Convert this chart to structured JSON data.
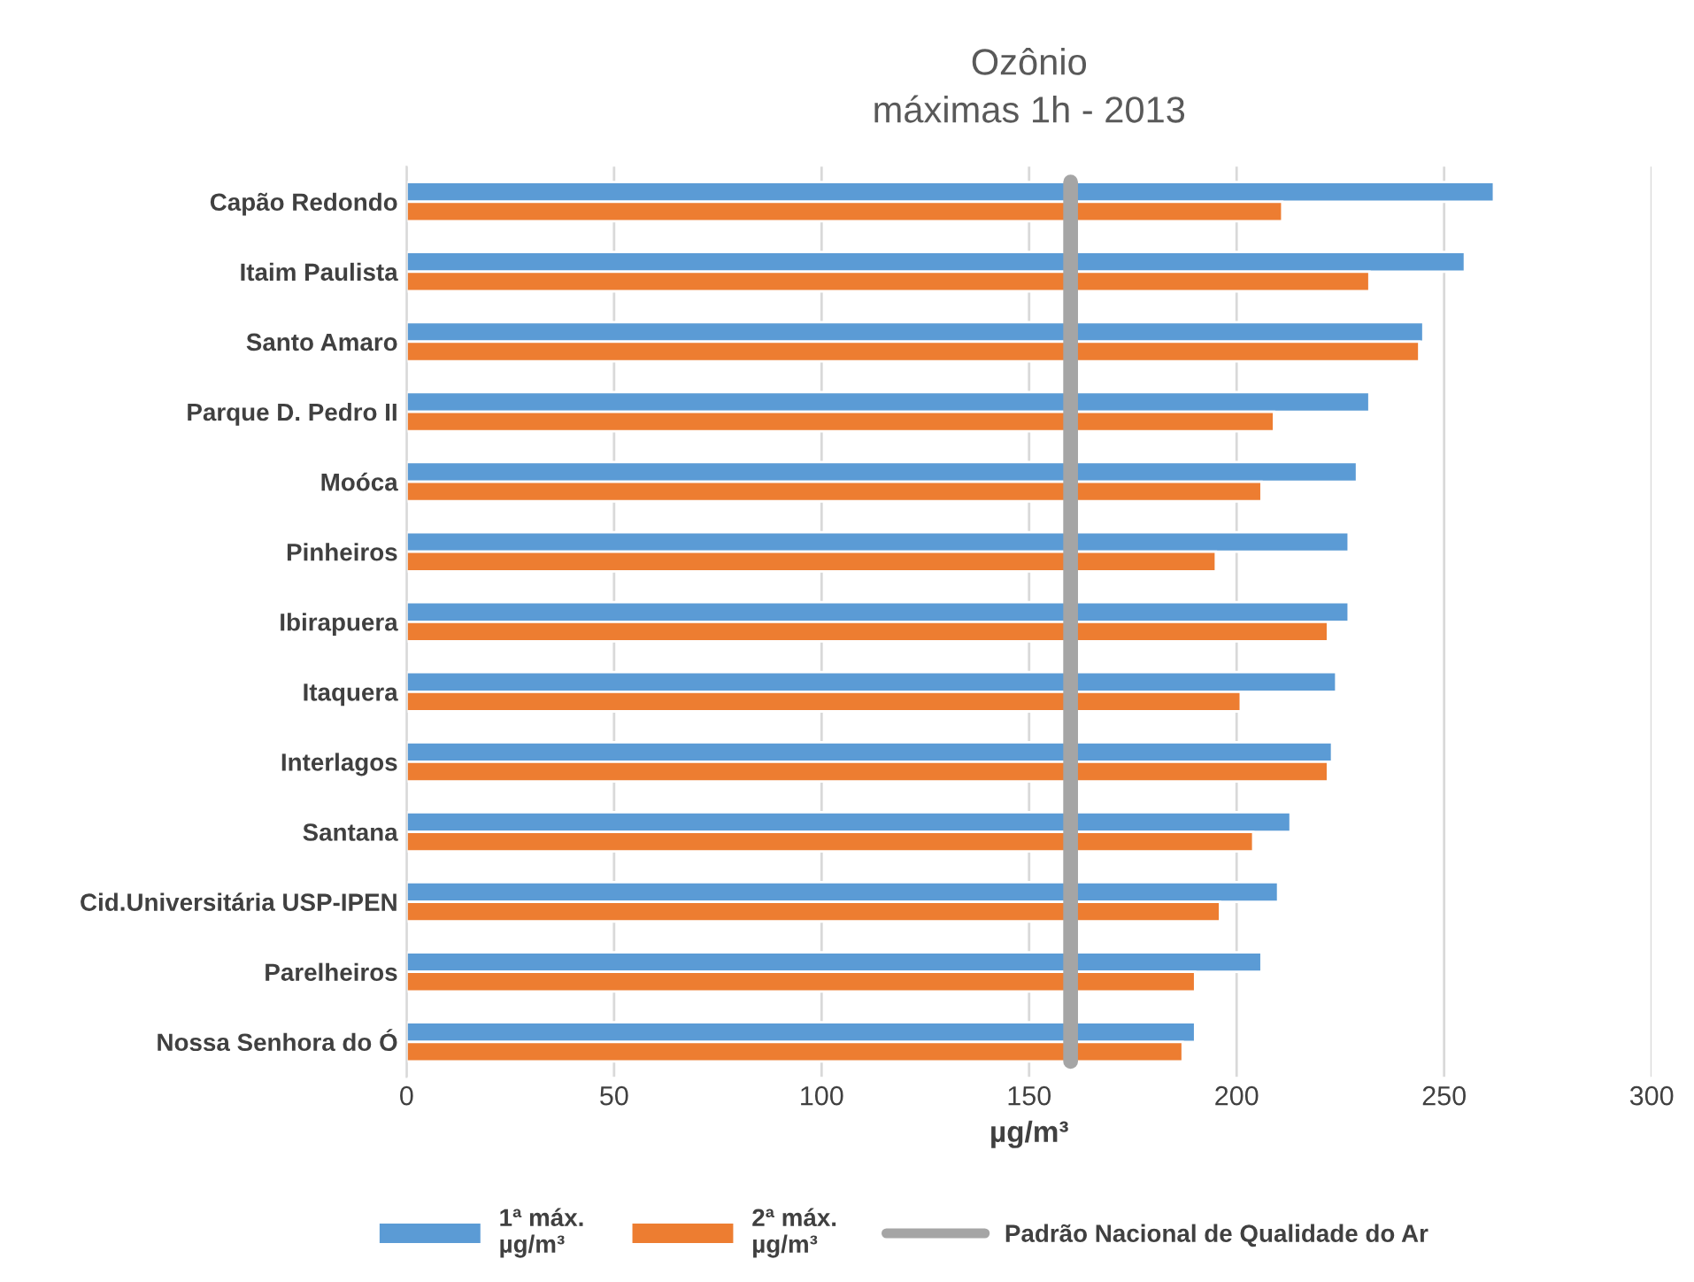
{
  "chart_data": {
    "type": "bar",
    "orientation": "horizontal",
    "title": "Ozônio\nmáximas 1h - 2013",
    "xlabel": "µg/m³",
    "categories": [
      "Capão Redondo",
      "Itaim Paulista",
      "Santo Amaro",
      "Parque D. Pedro II",
      "Moóca",
      "Pinheiros",
      "Ibirapuera",
      "Itaquera",
      "Interlagos",
      "Santana",
      "Cid.Universitária USP-IPEN",
      "Parelheiros",
      "Nossa Senhora do Ó"
    ],
    "series": [
      {
        "name": "1ª máx.\nµg/m³",
        "color": "#5b9bd5",
        "values": [
          262,
          255,
          245,
          232,
          229,
          227,
          227,
          224,
          223,
          213,
          210,
          206,
          190
        ]
      },
      {
        "name": "2ª máx.\nµg/m³",
        "color": "#ed7d31",
        "values": [
          211,
          232,
          244,
          209,
          206,
          195,
          222,
          201,
          222,
          204,
          196,
          190,
          187
        ]
      }
    ],
    "ref_lines": [
      {
        "axis": "x",
        "value": 160,
        "label": "Padrão Nacional de Qualidade do Ar",
        "color": "#a5a5a5"
      }
    ],
    "xlim": [
      0,
      300
    ],
    "xticks": [
      0,
      50,
      100,
      150,
      200,
      250,
      300
    ],
    "grid": "x",
    "legend": "bottom"
  }
}
